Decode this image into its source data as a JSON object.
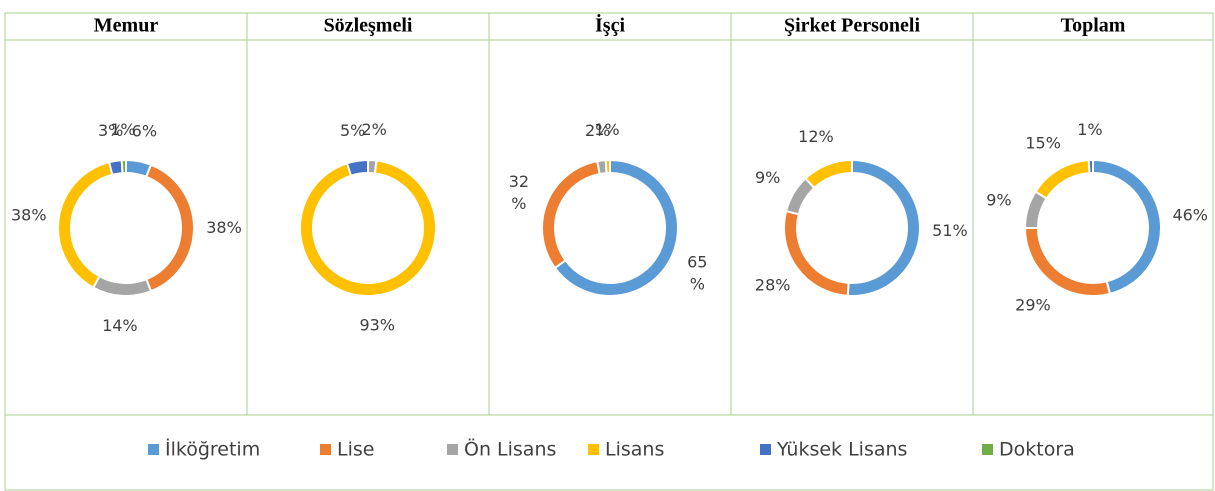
{
  "legend": {
    "labels": [
      "İlköğretim",
      "Lise",
      "Ön Lisans",
      "Lisans",
      "Yüksek Lisans",
      "Doktora"
    ],
    "colors": [
      "#5b9bd5",
      "#ed7d31",
      "#a5a5a5",
      "#ffc000",
      "#4472c4",
      "#70ad47"
    ]
  },
  "chart_data": [
    {
      "type": "donut",
      "title": "Memur",
      "values": [
        6,
        38,
        14,
        38,
        3,
        1
      ],
      "value_labels": [
        "6%",
        "38%",
        "14%",
        "38%",
        "3%",
        "1%"
      ]
    },
    {
      "type": "donut",
      "title": "Sözleşmeli",
      "values": [
        null,
        null,
        2,
        93,
        5,
        null
      ],
      "value_labels": [
        null,
        null,
        "2%",
        "93%",
        "5%",
        null
      ]
    },
    {
      "type": "donut",
      "title": "İşçi",
      "values": [
        65,
        32,
        2,
        1,
        null,
        null
      ],
      "value_labels": [
        "65 %",
        "32 %",
        "2%",
        "1%",
        null,
        null
      ]
    },
    {
      "type": "donut",
      "title": "Şirket Personeli",
      "values": [
        51,
        28,
        9,
        12,
        null,
        null
      ],
      "value_labels": [
        "51%",
        "28%",
        "9%",
        "12%",
        null,
        null
      ]
    },
    {
      "type": "donut",
      "title": "Toplam",
      "values": [
        46,
        29,
        9,
        15,
        1,
        null
      ],
      "value_labels": [
        "46%",
        "29%",
        "9%",
        "15%",
        "1%",
        null
      ]
    }
  ]
}
